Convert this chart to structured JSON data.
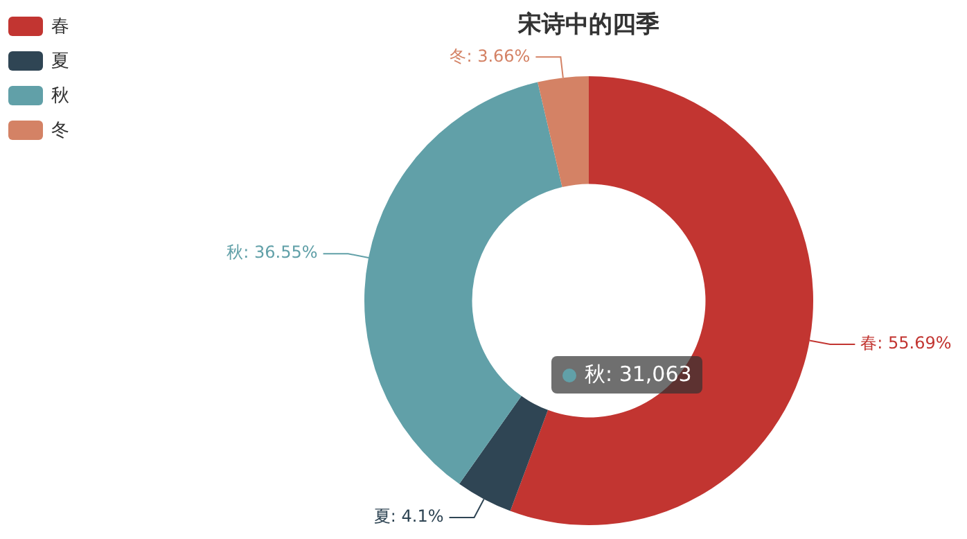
{
  "chart_data": {
    "type": "donut",
    "title": "宋诗中的四季",
    "categories": [
      "春",
      "夏",
      "秋",
      "冬"
    ],
    "values": [
      55.69,
      4.1,
      36.55,
      3.66
    ],
    "colors": [
      "#c23531",
      "#2f4554",
      "#61a0a8",
      "#d48265"
    ],
    "value_labels": [
      "春: 55.69%",
      "夏: 4.1%",
      "秋: 36.55%",
      "冬: 3.66%"
    ],
    "legend": "top left",
    "annotations": [
      "秋: 31,063"
    ]
  }
}
